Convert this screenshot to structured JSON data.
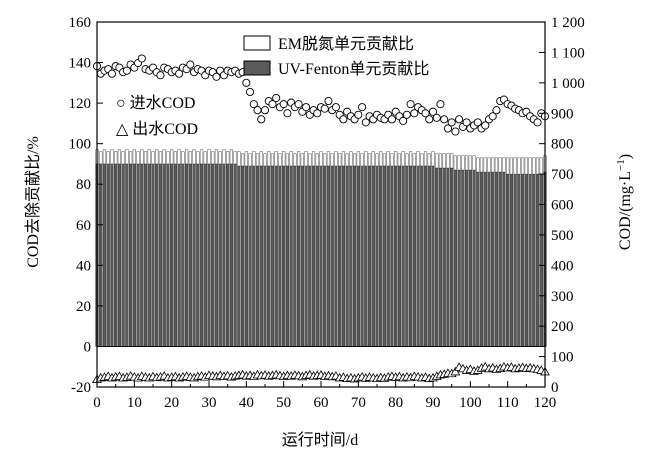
{
  "chart_data": {
    "type": "bar",
    "stacked": true,
    "x_axis": {
      "label": "运行时间/d",
      "min": 0,
      "max": 120,
      "ticks": [
        0,
        10,
        20,
        30,
        40,
        50,
        60,
        70,
        80,
        90,
        100,
        110,
        120
      ]
    },
    "y_left": {
      "label": "COD去除贡献比/%",
      "min": -20,
      "max": 160,
      "ticks": [
        -20,
        0,
        20,
        40,
        60,
        80,
        100,
        120,
        140,
        160
      ]
    },
    "y_right": {
      "label": "COD/(mg·L⁻¹)",
      "label_main": "COD/(mg",
      "label_mid": "·L",
      "label_sup": "−1",
      "label_end": ")",
      "min": 0,
      "max": 1200,
      "ticks": [
        0,
        100,
        200,
        300,
        400,
        500,
        600,
        700,
        800,
        900,
        1000,
        1100,
        1200
      ],
      "tick_labels": [
        "0",
        "100",
        "200",
        "300",
        "400",
        "500",
        "600",
        "700",
        "800",
        "900",
        "1 000",
        "1 100",
        "1 200"
      ]
    },
    "legend": {
      "position": "top-right",
      "items": [
        {
          "label": "EM脱氮单元贡献比",
          "swatch": "open-box"
        },
        {
          "label": "UV-Fenton单元贡献比",
          "swatch": "filled-box"
        },
        {
          "label": "○ 进水COD",
          "marker": "circle"
        },
        {
          "label": "△ 出水COD",
          "marker": "triangle"
        }
      ]
    },
    "x": [
      0,
      1,
      2,
      3,
      4,
      5,
      6,
      7,
      8,
      9,
      10,
      11,
      12,
      13,
      14,
      15,
      16,
      17,
      18,
      19,
      20,
      21,
      22,
      23,
      24,
      25,
      26,
      27,
      28,
      29,
      30,
      31,
      32,
      33,
      34,
      35,
      36,
      37,
      38,
      39,
      40,
      41,
      42,
      43,
      44,
      45,
      46,
      47,
      48,
      49,
      50,
      51,
      52,
      53,
      54,
      55,
      56,
      57,
      58,
      59,
      60,
      61,
      62,
      63,
      64,
      65,
      66,
      67,
      68,
      69,
      70,
      71,
      72,
      73,
      74,
      75,
      76,
      77,
      78,
      79,
      80,
      81,
      82,
      83,
      84,
      85,
      86,
      87,
      88,
      89,
      90,
      91,
      92,
      93,
      94,
      95,
      96,
      97,
      98,
      99,
      100,
      101,
      102,
      103,
      104,
      105,
      106,
      107,
      108,
      109,
      110,
      111,
      112,
      113,
      114,
      115,
      116,
      117,
      118,
      119,
      120
    ],
    "series": [
      {
        "name": "UV-Fenton单元贡献比",
        "axis": "left",
        "kind": "bar",
        "color": "#5a5a5a",
        "values": [
          90,
          90,
          90,
          90,
          90,
          90,
          90,
          90,
          90,
          90,
          90,
          90,
          90,
          90,
          90,
          90,
          90,
          90,
          90,
          90,
          90,
          90,
          90,
          90,
          90,
          90,
          90,
          90,
          90,
          90,
          90,
          90,
          90,
          90,
          90,
          90,
          90,
          90,
          89,
          89,
          89,
          89,
          89,
          89,
          89,
          89,
          89,
          89,
          89,
          89,
          89,
          89,
          89,
          89,
          89,
          89,
          89,
          89,
          89,
          89,
          89,
          89,
          89,
          89,
          89,
          89,
          89,
          89,
          89,
          89,
          89,
          89,
          89,
          89,
          89,
          89,
          89,
          89,
          89,
          89,
          89,
          89,
          89,
          89,
          89,
          89,
          89,
          89,
          89,
          89,
          89,
          88,
          88,
          88,
          88,
          88,
          87,
          87,
          87,
          87,
          87,
          87,
          86,
          86,
          86,
          86,
          86,
          86,
          86,
          86,
          85,
          85,
          85,
          85,
          85,
          85,
          85,
          85,
          85,
          85,
          86
        ]
      },
      {
        "name": "EM脱氮单元贡献比",
        "axis": "left",
        "kind": "bar-top",
        "color": "#ffffff",
        "values": [
          7,
          6,
          7,
          6,
          7,
          6,
          7,
          6,
          7,
          6,
          7,
          6,
          7,
          6,
          7,
          6,
          7,
          6,
          7,
          6,
          7,
          6,
          7,
          6,
          7,
          6,
          7,
          6,
          7,
          6,
          7,
          6,
          7,
          6,
          7,
          6,
          7,
          6,
          7,
          6,
          7,
          6,
          7,
          6,
          7,
          6,
          7,
          6,
          7,
          6,
          7,
          6,
          7,
          6,
          7,
          6,
          7,
          6,
          7,
          6,
          7,
          6,
          7,
          6,
          7,
          6,
          7,
          6,
          7,
          6,
          7,
          6,
          7,
          6,
          7,
          6,
          7,
          6,
          7,
          6,
          7,
          6,
          7,
          6,
          7,
          6,
          7,
          6,
          7,
          6,
          7,
          7,
          7,
          7,
          7,
          7,
          7,
          7,
          7,
          7,
          7,
          7,
          7,
          7,
          7,
          7,
          7,
          7,
          7,
          7,
          8,
          8,
          8,
          8,
          8,
          8,
          8,
          8,
          8,
          8,
          8
        ]
      },
      {
        "name": "进水COD",
        "axis": "right",
        "kind": "scatter",
        "marker": "circle",
        "values": [
          1055,
          1030,
          1040,
          1045,
          1030,
          1055,
          1050,
          1035,
          1040,
          1060,
          1050,
          1065,
          1080,
          1045,
          1040,
          1050,
          1035,
          1025,
          1050,
          1045,
          1035,
          1040,
          1030,
          1050,
          1045,
          1060,
          1035,
          1045,
          1040,
          1025,
          1040,
          1035,
          1020,
          1040,
          1025,
          1040,
          1035,
          1040,
          1030,
          1035,
          1000,
          970,
          930,
          910,
          880,
          910,
          940,
          930,
          950,
          920,
          930,
          900,
          935,
          920,
          930,
          905,
          920,
          895,
          910,
          900,
          920,
          915,
          940,
          910,
          920,
          895,
          880,
          905,
          890,
          880,
          895,
          920,
          870,
          890,
          880,
          895,
          885,
          880,
          895,
          880,
          905,
          890,
          875,
          895,
          930,
          900,
          920,
          910,
          900,
          880,
          905,
          885,
          930,
          880,
          850,
          870,
          840,
          880,
          855,
          870,
          850,
          860,
          870,
          850,
          860,
          880,
          890,
          910,
          940,
          945,
          930,
          925,
          915,
          910,
          900,
          905,
          890,
          880,
          870,
          900,
          890
        ]
      },
      {
        "name": "出水COD",
        "axis": "right",
        "kind": "scatter",
        "marker": "triangle",
        "values": [
          25,
          30,
          32,
          35,
          30,
          33,
          35,
          30,
          32,
          36,
          33,
          30,
          35,
          32,
          30,
          34,
          31,
          33,
          36,
          30,
          32,
          34,
          30,
          33,
          35,
          32,
          30,
          34,
          36,
          33,
          38,
          36,
          34,
          38,
          35,
          37,
          33,
          36,
          38,
          40,
          36,
          38,
          35,
          40,
          37,
          39,
          36,
          38,
          40,
          37,
          35,
          38,
          36,
          39,
          37,
          34,
          38,
          40,
          36,
          38,
          39,
          35,
          37,
          34,
          36,
          30,
          32,
          28,
          30,
          27,
          30,
          33,
          29,
          32,
          30,
          28,
          31,
          29,
          33,
          35,
          32,
          34,
          30,
          33,
          31,
          35,
          33,
          30,
          32,
          28,
          30,
          35,
          40,
          42,
          45,
          44,
          50,
          65,
          60,
          55,
          58,
          52,
          55,
          62,
          66,
          60,
          63,
          58,
          61,
          66,
          63,
          65,
          60,
          62,
          64,
          61,
          63,
          60,
          58,
          55,
          50
        ]
      }
    ]
  }
}
